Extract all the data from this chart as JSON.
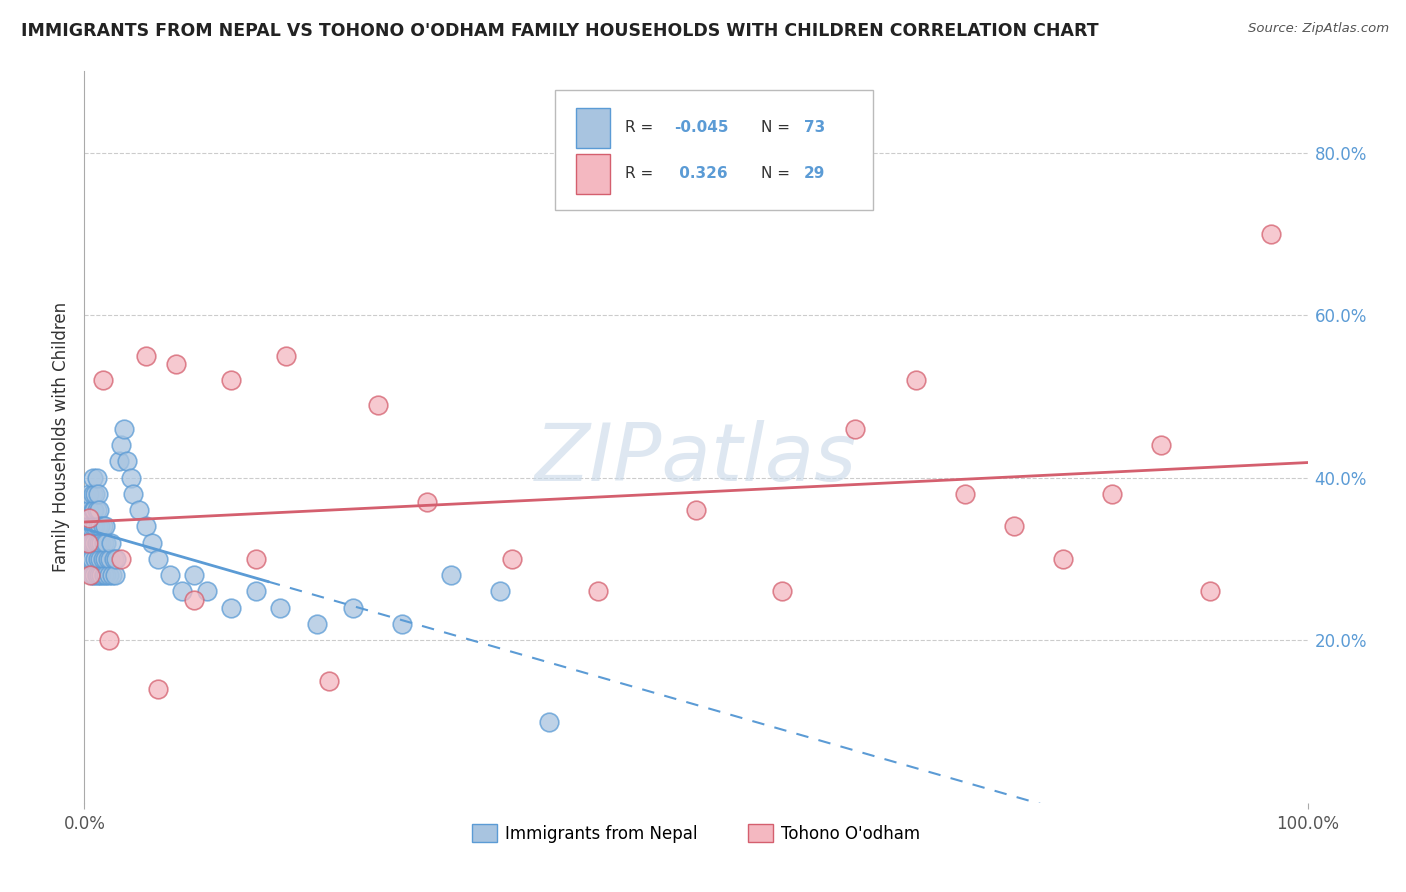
{
  "title": "IMMIGRANTS FROM NEPAL VS TOHONO O'ODHAM FAMILY HOUSEHOLDS WITH CHILDREN CORRELATION CHART",
  "source": "Source: ZipAtlas.com",
  "ylabel": "Family Households with Children",
  "color_blue": "#a8c4e0",
  "color_pink": "#f4b8c1",
  "line_blue": "#5b9bd5",
  "line_pink": "#d45f6e",
  "legend_label1": "Immigrants from Nepal",
  "legend_label2": "Tohono O'odham",
  "watermark": "ZIPatlas",
  "blue_x": [
    0.002,
    0.003,
    0.004,
    0.004,
    0.005,
    0.005,
    0.005,
    0.006,
    0.006,
    0.006,
    0.007,
    0.007,
    0.007,
    0.007,
    0.008,
    0.008,
    0.008,
    0.009,
    0.009,
    0.009,
    0.01,
    0.01,
    0.01,
    0.01,
    0.011,
    0.011,
    0.011,
    0.012,
    0.012,
    0.012,
    0.013,
    0.013,
    0.014,
    0.014,
    0.015,
    0.015,
    0.016,
    0.016,
    0.017,
    0.017,
    0.018,
    0.018,
    0.019,
    0.02,
    0.021,
    0.022,
    0.023,
    0.024,
    0.025,
    0.026,
    0.028,
    0.03,
    0.032,
    0.035,
    0.038,
    0.04,
    0.045,
    0.05,
    0.055,
    0.06,
    0.07,
    0.08,
    0.09,
    0.1,
    0.12,
    0.14,
    0.16,
    0.19,
    0.22,
    0.26,
    0.3,
    0.34,
    0.38
  ],
  "blue_y": [
    0.32,
    0.34,
    0.36,
    0.38,
    0.3,
    0.32,
    0.34,
    0.28,
    0.3,
    0.32,
    0.34,
    0.36,
    0.38,
    0.4,
    0.28,
    0.32,
    0.36,
    0.3,
    0.34,
    0.38,
    0.28,
    0.32,
    0.36,
    0.4,
    0.3,
    0.34,
    0.38,
    0.28,
    0.32,
    0.36,
    0.3,
    0.34,
    0.28,
    0.32,
    0.3,
    0.34,
    0.28,
    0.32,
    0.3,
    0.34,
    0.28,
    0.32,
    0.3,
    0.28,
    0.3,
    0.32,
    0.28,
    0.3,
    0.28,
    0.3,
    0.42,
    0.44,
    0.46,
    0.42,
    0.4,
    0.38,
    0.36,
    0.34,
    0.32,
    0.3,
    0.28,
    0.26,
    0.28,
    0.26,
    0.24,
    0.26,
    0.24,
    0.22,
    0.24,
    0.22,
    0.28,
    0.26,
    0.1
  ],
  "pink_x": [
    0.003,
    0.004,
    0.005,
    0.015,
    0.02,
    0.03,
    0.05,
    0.06,
    0.075,
    0.09,
    0.12,
    0.14,
    0.165,
    0.2,
    0.24,
    0.28,
    0.35,
    0.42,
    0.5,
    0.57,
    0.63,
    0.68,
    0.72,
    0.76,
    0.8,
    0.84,
    0.88,
    0.92,
    0.97
  ],
  "pink_y": [
    0.32,
    0.35,
    0.28,
    0.52,
    0.2,
    0.3,
    0.55,
    0.14,
    0.54,
    0.25,
    0.52,
    0.3,
    0.55,
    0.15,
    0.49,
    0.37,
    0.3,
    0.26,
    0.36,
    0.26,
    0.46,
    0.52,
    0.38,
    0.34,
    0.3,
    0.38,
    0.44,
    0.26,
    0.7
  ],
  "r_blue": -0.045,
  "n_blue": 73,
  "r_pink": 0.326,
  "n_pink": 29
}
